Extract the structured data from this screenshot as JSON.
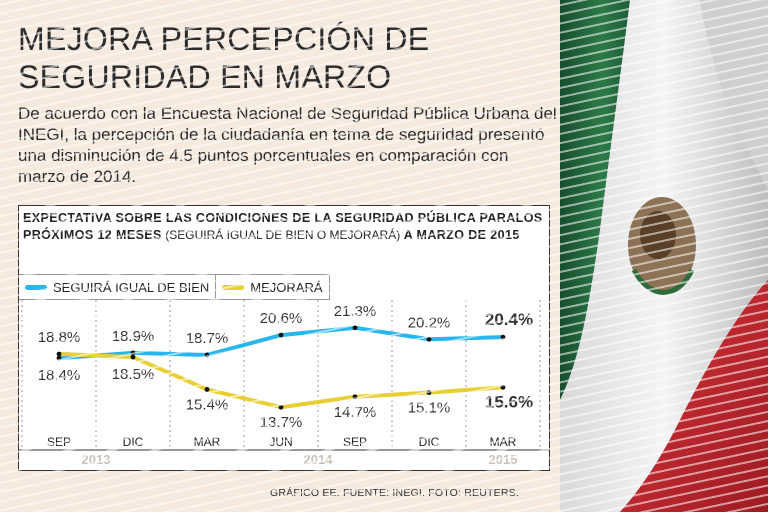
{
  "headline": "MEJORA PERCEPCIÓN DE SEGURIDAD EN MARZO",
  "lede": "De acuerdo con la Encuesta Nacional de Seguridad Pública Urbana del INEGI, la percepción de la ciudadanía en tema de seguridad presentó una disminución de 4.5 puntos porcentuales en comparación con marzo de 2014.",
  "chart_title_bold": "Expectativa sobre las condiciones de la seguridad pública paralos próximos 12 meses",
  "chart_title_paren": "(seguirá igual de bien o mejorará)",
  "chart_title_tail": "a marzo de 2015",
  "source": "GRÁFICO EE. FUENTE: INEGI. FOTO: REUTERS.",
  "colors": {
    "seguira": "#29b6ec",
    "mejorara": "#e8cf33",
    "background": "#f6e9dd",
    "flag_green": "#1f6b3f",
    "flag_red": "#c9262c"
  },
  "chart_data": {
    "type": "line",
    "categories": [
      "SEP",
      "DIC",
      "MAR",
      "JUN",
      "SEP",
      "DIC",
      "MAR"
    ],
    "years": [
      "2013",
      "2014",
      "2015"
    ],
    "series": [
      {
        "name": "SEGUIRÁ IGUAL DE BIEN",
        "values": [
          18.4,
          18.9,
          18.7,
          20.6,
          21.3,
          20.2,
          20.4
        ],
        "labels": [
          "18.4%",
          "18.9%",
          "18.7%",
          "20.6%",
          "21.3%",
          "20.2%",
          "20.4%"
        ]
      },
      {
        "name": "MEJORARÁ",
        "values": [
          18.8,
          18.5,
          15.4,
          13.7,
          14.7,
          15.1,
          15.6
        ],
        "labels": [
          "18.8%",
          "18.5%",
          "15.4%",
          "13.7%",
          "14.7%",
          "15.1%",
          "15.6%"
        ]
      }
    ],
    "ylim": [
      12,
      23
    ],
    "grid": false,
    "legend": "top-left"
  }
}
